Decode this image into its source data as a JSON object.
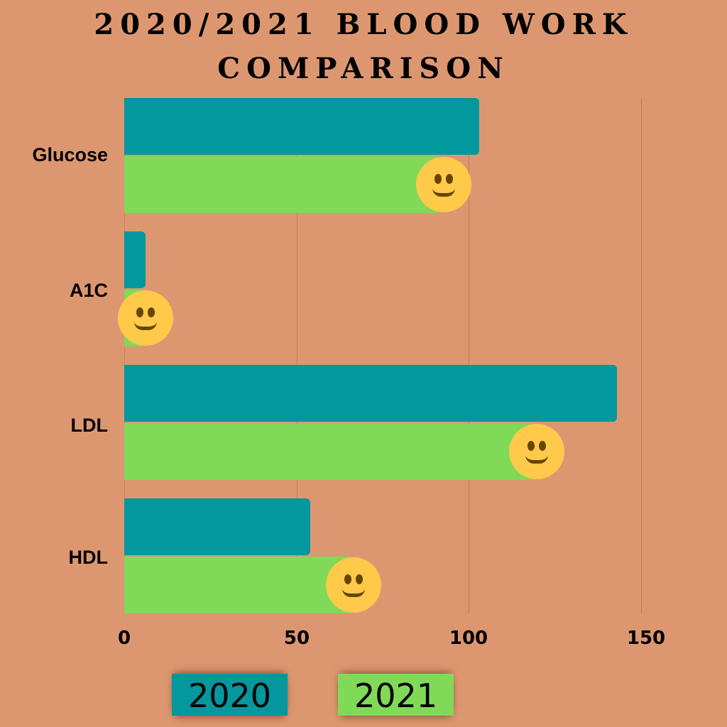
{
  "title": {
    "line1": "2020/2021 BLOOD WORK",
    "line2": "COMPARISON"
  },
  "colors": {
    "background": "#dd9770",
    "series_2020": "#03979e",
    "series_2021": "#80d957",
    "smiley": "#ffc94a"
  },
  "axis": {
    "ticks": [
      "0",
      "50",
      "100",
      "150"
    ]
  },
  "legend": {
    "items": [
      {
        "label": "2020",
        "color": "#03979e"
      },
      {
        "label": "2021",
        "color": "#80d957"
      }
    ]
  },
  "categories_display": [
    "Glucose",
    "A1C",
    "LDL",
    "HDL"
  ],
  "icons": {
    "annotation": "smiley-face-icon"
  },
  "chart_data": {
    "type": "bar",
    "orientation": "horizontal",
    "title": "2020/2021 BLOOD WORK COMPARISON",
    "categories": [
      "Glucose",
      "A1C",
      "LDL",
      "HDL"
    ],
    "series": [
      {
        "name": "2020",
        "color": "#03979e",
        "values": [
          103,
          6.2,
          143,
          54
        ]
      },
      {
        "name": "2021",
        "color": "#80d957",
        "values": [
          92,
          5.6,
          119,
          66
        ]
      }
    ],
    "xlabel": "",
    "ylabel": "",
    "xlim": [
      0,
      150
    ],
    "xticks": [
      0,
      50,
      100,
      150
    ],
    "grid": true,
    "legend_position": "bottom",
    "annotations": "smiley face emoji at the end of each 2021 bar"
  }
}
